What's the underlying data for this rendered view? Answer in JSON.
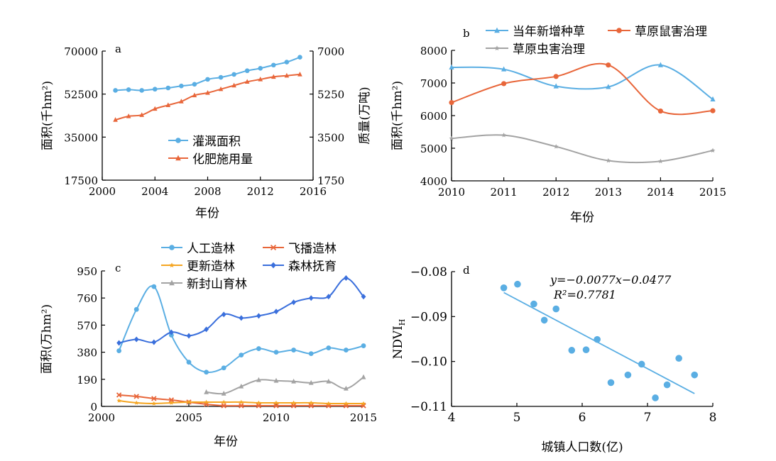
{
  "colors": {
    "blue": "#5aaee3",
    "orange": "#e8663a",
    "yellow": "#f5a623",
    "darkblue": "#3a6fdc",
    "gray": "#a3a3a3",
    "ink": "#000000"
  },
  "chart_data": [
    {
      "panel": "a",
      "type": "line",
      "letter": "a",
      "xlabel": "年份",
      "ylabel": "面积(千hm²)",
      "ylabel2": "质量(万吨)",
      "xlim": [
        2000,
        2016
      ],
      "ylim": [
        17500,
        70000
      ],
      "ylim2": [
        1750,
        7000
      ],
      "xticks": [
        2000,
        2004,
        2008,
        2012,
        2016
      ],
      "yticks": [
        17500,
        35000,
        52500,
        70000
      ],
      "yticks2": [
        1750,
        3500,
        5250,
        7000
      ],
      "legend_position": "center",
      "series": [
        {
          "name": "灌溉面积",
          "axis": "left",
          "color": "#5aaee3",
          "marker": "circle",
          "x": [
            2001,
            2002,
            2003,
            2004,
            2005,
            2006,
            2007,
            2008,
            2009,
            2010,
            2011,
            2012,
            2013,
            2014,
            2015
          ],
          "y": [
            54000,
            54300,
            54000,
            54500,
            55000,
            55800,
            56500,
            58500,
            59300,
            60500,
            62000,
            63000,
            64300,
            65500,
            67500
          ]
        },
        {
          "name": "化肥施用量",
          "axis": "right",
          "color": "#e8663a",
          "marker": "triangle",
          "x": [
            2001,
            2002,
            2003,
            2004,
            2005,
            2006,
            2007,
            2008,
            2009,
            2010,
            2011,
            2012,
            2013,
            2014,
            2015
          ],
          "y": [
            4200,
            4350,
            4400,
            4650,
            4800,
            4950,
            5200,
            5300,
            5450,
            5600,
            5750,
            5850,
            5950,
            6000,
            6050
          ]
        }
      ]
    },
    {
      "panel": "b",
      "type": "line",
      "letter": "b",
      "xlabel": "年份",
      "ylabel": "面积(千hm²)",
      "xlim": [
        2010,
        2015
      ],
      "ylim": [
        4000,
        8000
      ],
      "xticks": [
        2010,
        2011,
        2012,
        2013,
        2014,
        2015
      ],
      "yticks": [
        4000,
        5000,
        6000,
        7000,
        8000
      ],
      "legend_position": "top",
      "series": [
        {
          "name": "当年新增种草",
          "color": "#5aaee3",
          "marker": "triangle",
          "x": [
            2010,
            2011,
            2012,
            2013,
            2014,
            2015
          ],
          "y": [
            7480,
            7420,
            6900,
            6880,
            7550,
            6500
          ]
        },
        {
          "name": "草原鼠害治理",
          "color": "#e8663a",
          "marker": "circle",
          "x": [
            2010,
            2011,
            2012,
            2013,
            2014,
            2015
          ],
          "y": [
            6400,
            6980,
            7200,
            7550,
            6140,
            6150
          ]
        },
        {
          "name": "草原虫害治理",
          "color": "#a3a3a3",
          "marker": "star",
          "x": [
            2010,
            2011,
            2012,
            2013,
            2014,
            2015
          ],
          "y": [
            5300,
            5400,
            5050,
            4620,
            4600,
            4930
          ]
        }
      ]
    },
    {
      "panel": "c",
      "type": "line",
      "letter": "c",
      "xlabel": "年份",
      "ylabel": "面积(万hm²)",
      "xlim": [
        2000,
        2015
      ],
      "ylim": [
        0,
        950
      ],
      "xticks": [
        2000,
        2005,
        2010,
        2015
      ],
      "yticks": [
        0,
        190,
        380,
        570,
        760,
        950
      ],
      "legend_position": "top",
      "series": [
        {
          "name": "人工造林",
          "color": "#5aaee3",
          "marker": "circle",
          "x": [
            2001,
            2002,
            2003,
            2004,
            2005,
            2006,
            2007,
            2008,
            2009,
            2010,
            2011,
            2012,
            2013,
            2014,
            2015
          ],
          "y": [
            390,
            680,
            840,
            500,
            310,
            240,
            270,
            360,
            405,
            380,
            395,
            370,
            410,
            395,
            425
          ]
        },
        {
          "name": "飞播造林",
          "color": "#e8663a",
          "marker": "cross",
          "x": [
            2001,
            2002,
            2003,
            2004,
            2005,
            2006,
            2007,
            2008,
            2009,
            2010,
            2011,
            2012,
            2013,
            2014,
            2015
          ],
          "y": [
            80,
            70,
            55,
            45,
            30,
            15,
            5,
            5,
            5,
            5,
            5,
            5,
            5,
            5,
            5
          ]
        },
        {
          "name": "更新造林",
          "color": "#f5a623",
          "marker": "star",
          "x": [
            2001,
            2002,
            2003,
            2004,
            2005,
            2006,
            2007,
            2008,
            2009,
            2010,
            2011,
            2012,
            2013,
            2014,
            2015
          ],
          "y": [
            40,
            25,
            20,
            25,
            30,
            30,
            30,
            30,
            25,
            25,
            25,
            25,
            20,
            20,
            20
          ]
        },
        {
          "name": "森林抚育",
          "color": "#3a6fdc",
          "marker": "diamond",
          "x": [
            2001,
            2002,
            2003,
            2004,
            2005,
            2006,
            2007,
            2008,
            2009,
            2010,
            2011,
            2012,
            2013,
            2014,
            2015
          ],
          "y": [
            445,
            470,
            450,
            520,
            495,
            540,
            645,
            620,
            635,
            665,
            730,
            760,
            770,
            900,
            770
          ]
        },
        {
          "name": "新封山育林",
          "color": "#a3a3a3",
          "marker": "triangle",
          "x": [
            2006,
            2007,
            2008,
            2009,
            2010,
            2011,
            2012,
            2013,
            2014,
            2015
          ],
          "y": [
            100,
            90,
            140,
            185,
            180,
            175,
            165,
            175,
            125,
            205
          ]
        }
      ]
    },
    {
      "panel": "d",
      "type": "scatter",
      "letter": "d",
      "xlabel": "城镇人口数(亿)",
      "ylabel": "NDVI",
      "ylabel_sub": "H",
      "xlim": [
        4,
        8
      ],
      "ylim": [
        -0.11,
        -0.08
      ],
      "xticks": [
        4,
        5,
        6,
        7,
        8
      ],
      "yticks": [
        -0.11,
        -0.1,
        -0.09,
        -0.08
      ],
      "ytick_labels": [
        "−0.11",
        "−0.10",
        "−0.09",
        "−0.08"
      ],
      "equation": "y=−0.0077x−0.0477",
      "r2": "R²=0.7781",
      "points": {
        "x": [
          4.8,
          5.01,
          5.26,
          5.42,
          5.6,
          5.84,
          6.06,
          6.23,
          6.44,
          6.7,
          6.91,
          7.12,
          7.3,
          7.48,
          7.72
        ],
        "y": [
          -0.0836,
          -0.0828,
          -0.0872,
          -0.0908,
          -0.0883,
          -0.0975,
          -0.0974,
          -0.0951,
          -0.1047,
          -0.103,
          -0.1006,
          -0.1081,
          -0.1052,
          -0.0993,
          -0.103
        ]
      },
      "trendline": {
        "slope": -0.0077,
        "intercept": -0.0477,
        "x_range": [
          4.8,
          7.72
        ]
      }
    }
  ]
}
